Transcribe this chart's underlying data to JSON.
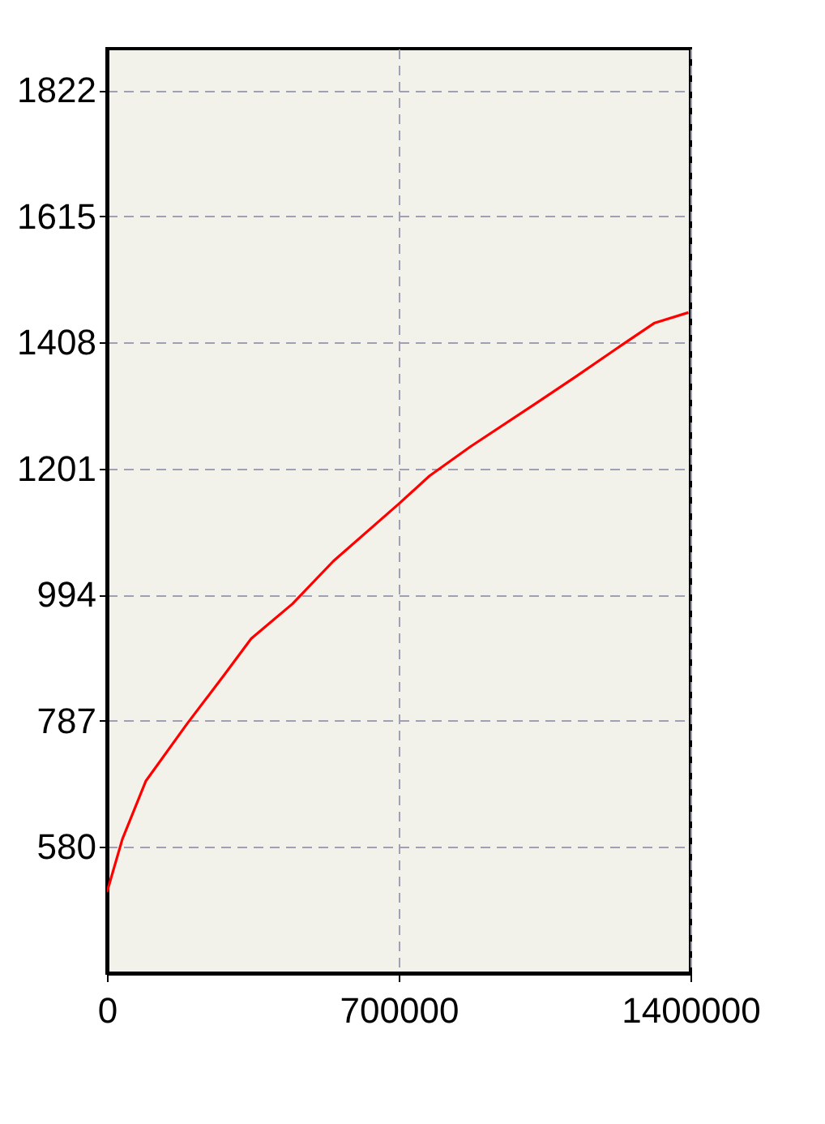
{
  "chart_data": {
    "type": "line",
    "x": [
      0,
      37000,
      93000,
      192000,
      282000,
      346000,
      445000,
      543000,
      700000,
      774000,
      872000,
      1027000,
      1125000,
      1223000,
      1314000,
      1395000
    ],
    "series": [
      {
        "color": "#ff0000",
        "values": [
          506,
          593,
          688,
          782,
          863,
          922,
          979,
          1049,
          1143,
          1189,
          1237,
          1307,
          1352,
          1398,
          1440,
          1457
        ]
      }
    ],
    "xlim": [
      0,
      1400000
    ],
    "xticks": [
      0,
      700000,
      1400000
    ],
    "ylim": [
      373,
      1890
    ],
    "yticks": [
      580,
      787,
      994,
      1201,
      1408,
      1615,
      1822
    ],
    "grid": true,
    "line_style": "solid",
    "marker": "none"
  }
}
